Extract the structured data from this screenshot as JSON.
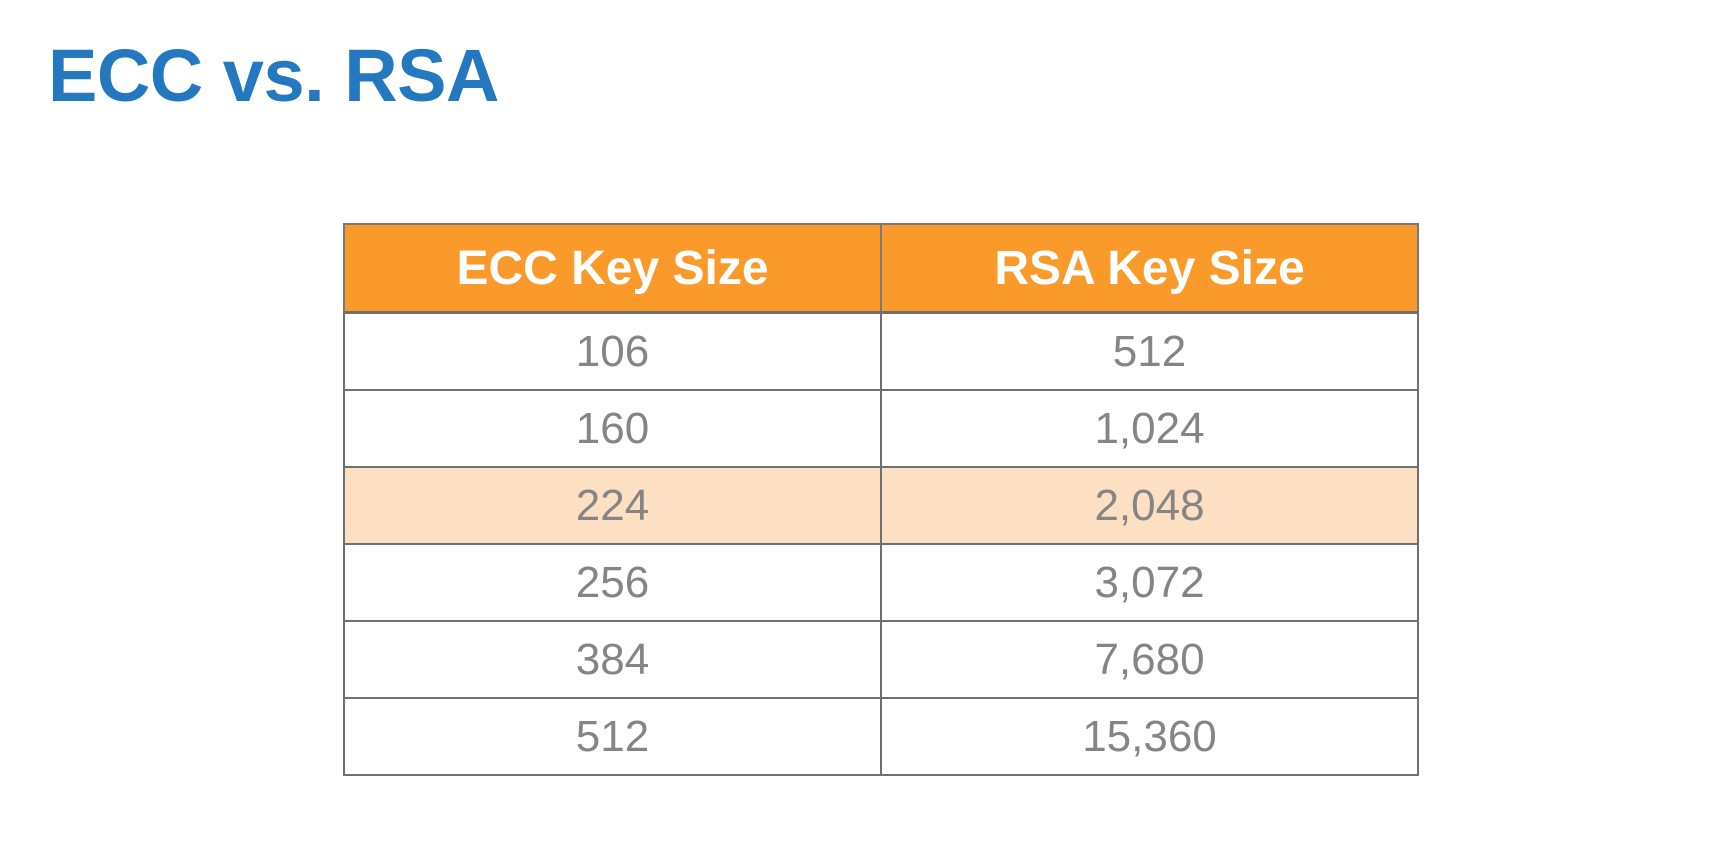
{
  "title": "ECC vs. RSA",
  "table": {
    "headers": [
      "ECC Key Size",
      "RSA Key Size"
    ],
    "rows": [
      [
        "106",
        "512"
      ],
      [
        "160",
        "1,024"
      ],
      [
        "224",
        "2,048"
      ],
      [
        "256",
        "3,072"
      ],
      [
        "384",
        "7,680"
      ],
      [
        "512",
        "15,360"
      ]
    ],
    "highlighted_row_index": 2
  },
  "colors": {
    "title": "#2378bf",
    "header_background": "#f99a2a",
    "header_text": "#ffffff",
    "highlight_row": "#fde0c4",
    "cell_text": "#858585",
    "border": "#6f6f6f"
  }
}
